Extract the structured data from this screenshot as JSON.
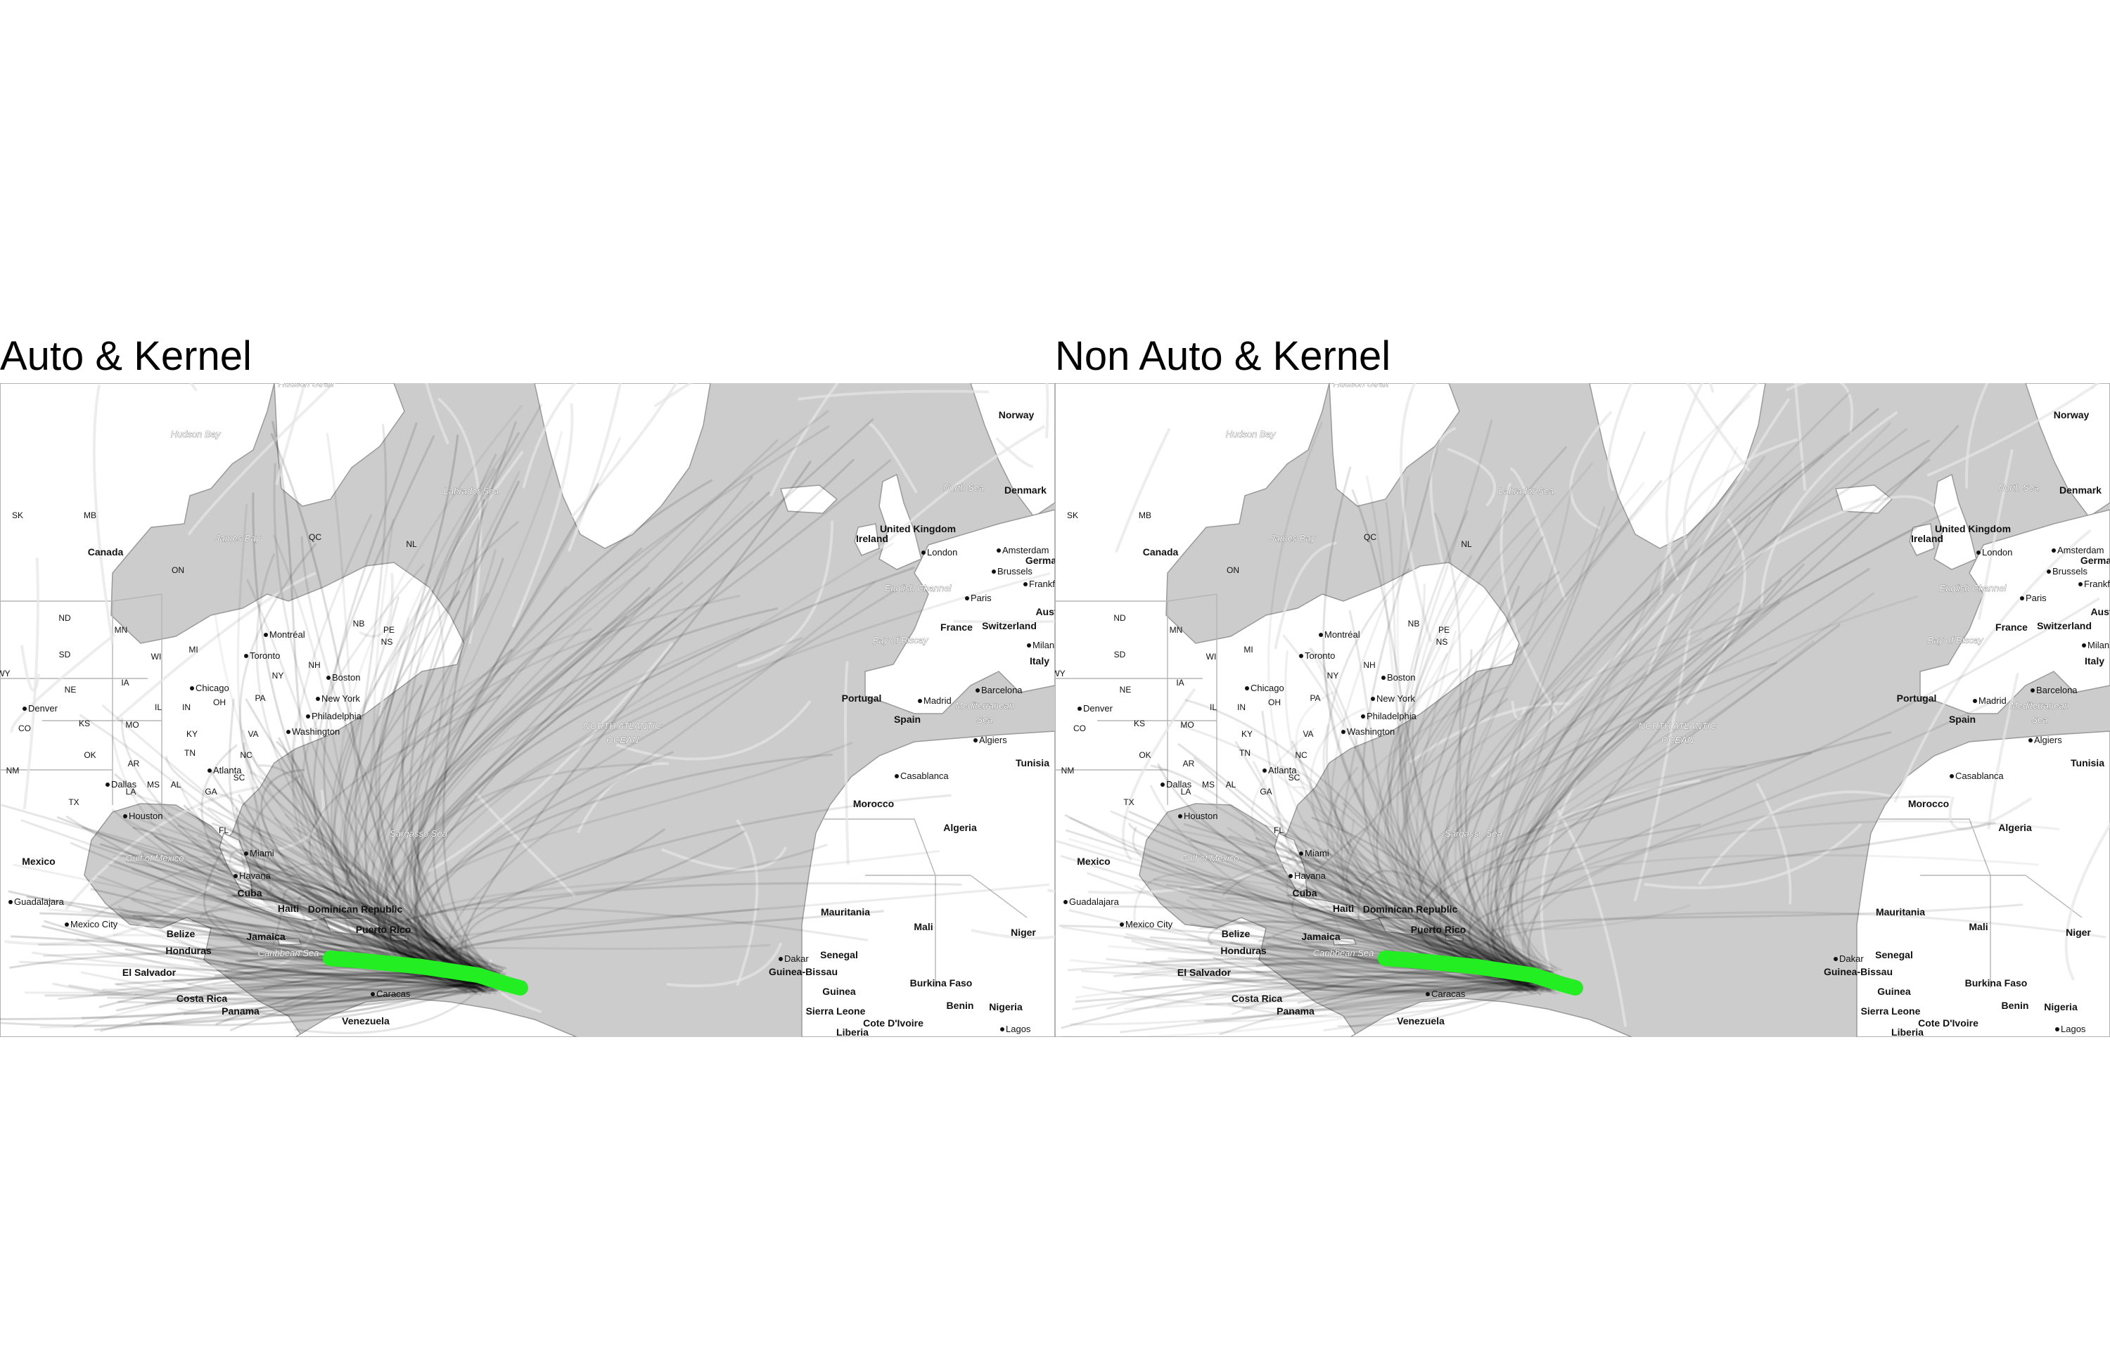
{
  "panels": [
    {
      "title": "Auto & Kernel"
    },
    {
      "title": "Non Auto & Kernel"
    }
  ],
  "colors": {
    "ocean": "#cccccc",
    "land": "#ffffff",
    "border": "#9a9a9a",
    "track": "#000000",
    "historical_track": "#f4f4f4",
    "forecast": "#22ee22"
  },
  "map_labels": {
    "countries": [
      "Canada",
      "Mexico",
      "Cuba",
      "Haiti",
      "Dominican Republic",
      "Puerto Rico",
      "Jamaica",
      "Belize",
      "Honduras",
      "El Salvador",
      "Costa Rica",
      "Panama",
      "Venezuela",
      "United Kingdom",
      "Ireland",
      "France",
      "Switzerland",
      "Portugal",
      "Spain",
      "Italy",
      "Morocco",
      "Algeria",
      "Tunisia",
      "Mauritania",
      "Mali",
      "Niger",
      "Senegal",
      "Guinea-Bissau",
      "Guinea",
      "Sierra Leone",
      "Liberia",
      "Cote D'Ivoire",
      "Burkina Faso",
      "Benin",
      "Nigeria",
      "Norway",
      "Denmark",
      "Germa",
      "Aust"
    ],
    "states": [
      "SK",
      "MB",
      "ON",
      "QC",
      "NL",
      "NB",
      "PE",
      "NS",
      "ND",
      "SD",
      "NE",
      "KS",
      "OK",
      "TX",
      "NM",
      "CO",
      "MN",
      "IA",
      "MO",
      "AR",
      "LA",
      "MS",
      "AL",
      "GA",
      "FL",
      "SC",
      "NC",
      "VA",
      "TN",
      "KY",
      "IL",
      "IN",
      "OH",
      "WI",
      "MI",
      "PA",
      "NY",
      "NH",
      "WY"
    ],
    "cities": [
      "Montréal",
      "Toronto",
      "Chicago",
      "New York",
      "Boston",
      "Philadelphia",
      "Washington",
      "Denver",
      "Dallas",
      "Houston",
      "Atlanta",
      "Miami",
      "Havana",
      "Mexico City",
      "Guadalajara",
      "Caracas",
      "London",
      "Amsterdam",
      "Brussels",
      "Frankfurt",
      "Paris",
      "Milan",
      "Madrid",
      "Barcelona",
      "Algiers",
      "Casablanca",
      "Dakar",
      "Lagos"
    ],
    "water": [
      "Hudson Strait",
      "Hudson Bay",
      "James Bay",
      "Labrador Sea",
      "North Sea",
      "English Channel",
      "Bay of Biscay",
      "NORTH ATLANTIC",
      "OCEAN",
      "Sargasso Sea",
      "Gulf of Mexico",
      "Caribbean Sea",
      "Mediterranean",
      "Sea"
    ]
  }
}
